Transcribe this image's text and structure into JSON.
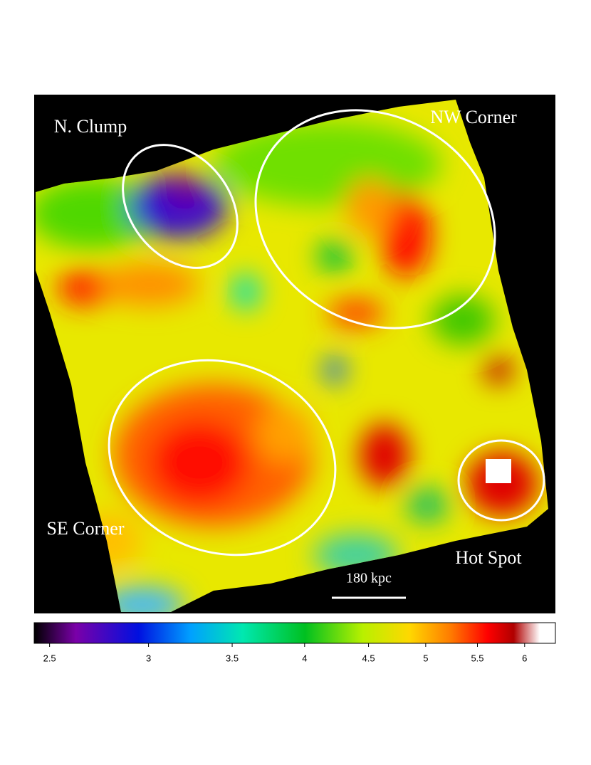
{
  "labels": {
    "north_clump": "N. Clump",
    "northwest_corner": "NW Corner",
    "southeast_corner": "SE Corner",
    "hot_spot": "Hot Spot",
    "scale_bar": "180 kpc"
  },
  "colorbar": {
    "log": true,
    "lim": [
      2.43,
      6.35
    ],
    "ticks": [
      2.5,
      3,
      3.5,
      4,
      4.5,
      5,
      5.5,
      6
    ]
  }
}
